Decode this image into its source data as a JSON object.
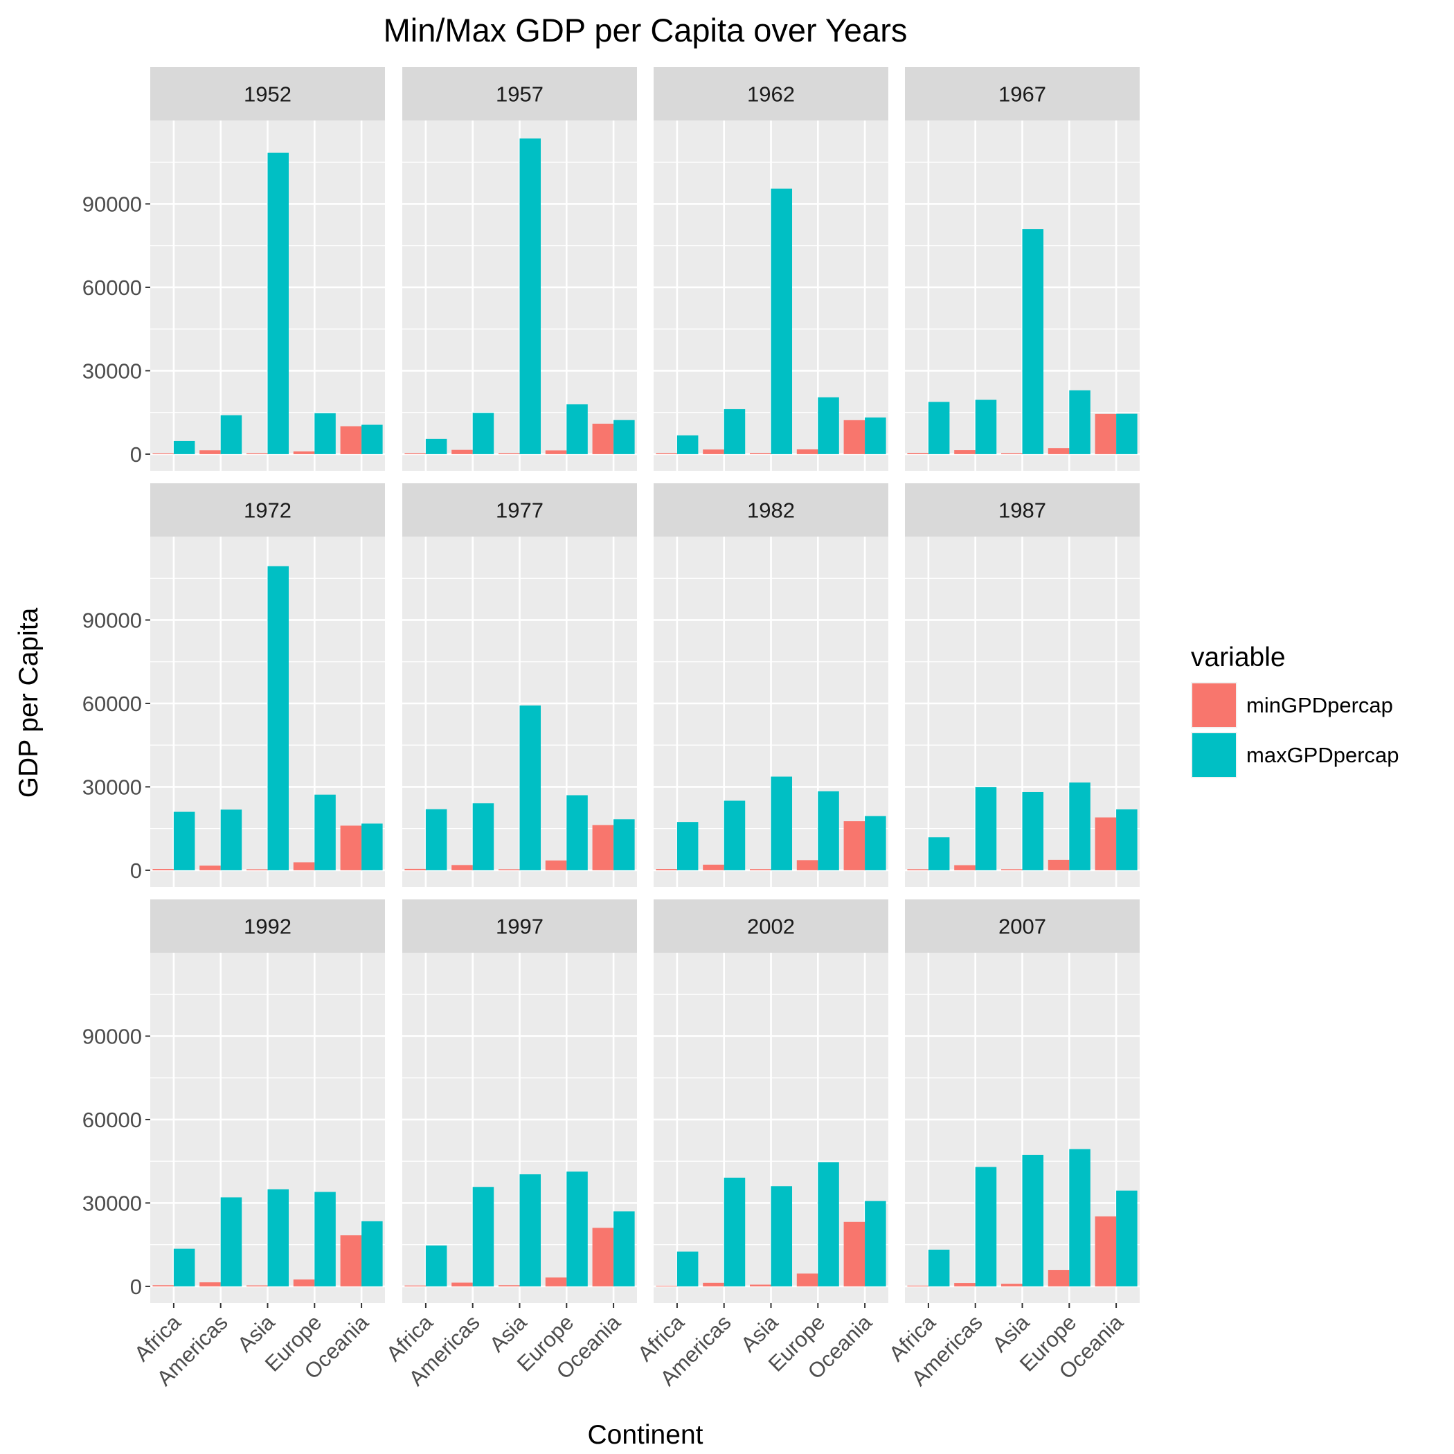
{
  "chart_data": {
    "type": "bar",
    "title": "Min/Max GDP per Capita over Years",
    "xlabel": "Continent",
    "ylabel": "GDP per Capita",
    "categories": [
      "Africa",
      "Americas",
      "Asia",
      "Europe",
      "Oceania"
    ],
    "y_ticks": [
      0,
      30000,
      60000,
      90000
    ],
    "y_tick_labels": [
      "0",
      "30000",
      "60000",
      "90000"
    ],
    "ylim": [
      -6000,
      120000
    ],
    "grid": true,
    "legend": {
      "title": "variable",
      "position": "right",
      "entries": [
        {
          "label": "minGPDpercap",
          "color": "#F8766D"
        },
        {
          "label": "maxGPDpercap",
          "color": "#00BFC4"
        }
      ]
    },
    "facets": [
      {
        "year": "1952",
        "min": [
          298,
          1398,
          331,
          974,
          10040
        ],
        "max": [
          4725,
          13990,
          108382,
          14734,
          10557
        ]
      },
      {
        "year": "1957",
        "min": [
          336,
          1544,
          350,
          1354,
          10950
        ],
        "max": [
          5487,
          14847,
          113523,
          17909,
          12247
        ]
      },
      {
        "year": "1962",
        "min": [
          355,
          1662,
          388,
          1710,
          12217
        ],
        "max": [
          6757,
          16173,
          95458,
          20431,
          13176
        ]
      },
      {
        "year": "1967",
        "min": [
          413,
          1452,
          349,
          2172,
          14463
        ],
        "max": [
          18773,
          19530,
          80895,
          22966,
          14526
        ]
      },
      {
        "year": "1972",
        "min": [
          464,
          1654,
          357,
          2860,
          16046
        ],
        "max": [
          21011,
          21806,
          109348,
          27195,
          16789
        ]
      },
      {
        "year": "1977",
        "min": [
          502,
          1874,
          371,
          3528,
          16234
        ],
        "max": [
          21951,
          24073,
          59265,
          26982,
          18334
        ]
      },
      {
        "year": "1982",
        "min": [
          462,
          2011,
          424,
          3631,
          17632
        ],
        "max": [
          17364,
          25010,
          33693,
          28398,
          19477
        ]
      },
      {
        "year": "1987",
        "min": [
          390,
          1823,
          385,
          3739,
          19007
        ],
        "max": [
          11864,
          29884,
          28118,
          31541,
          21889
        ]
      },
      {
        "year": "1992",
        "min": [
          410,
          1456,
          347,
          2497,
          18363
        ],
        "max": [
          13522,
          32004,
          34932,
          33966,
          23425
        ]
      },
      {
        "year": "1997",
        "min": [
          312,
          1342,
          415,
          3193,
          21050
        ],
        "max": [
          14723,
          35767,
          40301,
          41283,
          26998
        ]
      },
      {
        "year": "2002",
        "min": [
          241,
          1270,
          611,
          4604,
          23190
        ],
        "max": [
          12522,
          39097,
          36023,
          44684,
          30688
        ]
      },
      {
        "year": "2007",
        "min": [
          278,
          1202,
          944,
          5937,
          25185
        ],
        "max": [
          13206,
          42952,
          47307,
          49357,
          34435
        ]
      }
    ]
  }
}
